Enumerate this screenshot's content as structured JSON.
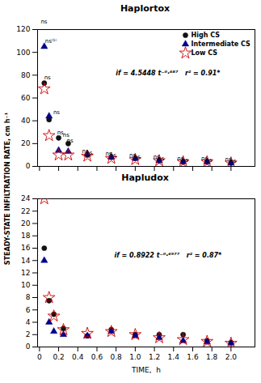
{
  "chart_data": [
    {
      "type": "scatter",
      "title": "Haplortox",
      "ylabel": "STEADY-STATE INFILTRATION RATE, cm h⁻¹",
      "x": [
        0.05,
        0.1,
        0.2,
        0.3,
        0.5,
        0.75,
        1.0,
        1.25,
        1.5,
        1.75,
        2.0
      ],
      "series": [
        {
          "name": "High CS",
          "color": "#111111",
          "marker": "circle",
          "values": [
            73,
            41,
            25,
            20,
            10,
            8,
            7,
            5,
            4,
            4,
            3
          ]
        },
        {
          "name": "Intermediate CS",
          "color": "#00008B",
          "marker": "triangle",
          "values": [
            105,
            44,
            14,
            13,
            11,
            8,
            7,
            5,
            4,
            4,
            3
          ]
        },
        {
          "name": "Low CS",
          "color": "#CC0000",
          "marker": "star",
          "values": [
            68,
            27,
            10,
            10,
            9,
            7,
            6,
            5,
            4,
            4,
            3
          ]
        }
      ],
      "xlim": [
        -0.02,
        2.25
      ],
      "xticks": [
        0,
        0.2,
        0.4,
        0.6,
        0.8,
        1,
        1.2,
        1.4,
        1.6,
        1.8,
        2
      ],
      "ylim": [
        0,
        120
      ],
      "yticks": [
        0,
        20,
        40,
        60,
        80,
        100,
        120
      ],
      "tick_labels": "y",
      "grid": false,
      "legend": "upper right",
      "annotations": [
        {
          "text": "ns",
          "x": 0.047,
          "y": 125
        },
        {
          "text": "ns",
          "x": 0.083,
          "y": 76
        },
        {
          "text": "ns⁽¹⁾",
          "x": 0.118,
          "y": 108
        },
        {
          "text": "ns",
          "x": 0.178,
          "y": 46
        },
        {
          "text": "ns",
          "x": 0.218,
          "y": 28
        },
        {
          "text": "ns",
          "x": 0.278,
          "y": 26
        },
        {
          "text": "ns",
          "x": 0.318,
          "y": 21
        },
        {
          "text": "ns",
          "x": 0.478,
          "y": 12
        },
        {
          "text": "ns",
          "x": 0.518,
          "y": 10
        },
        {
          "text": "ns",
          "x": 0.722,
          "y": 9.5
        },
        {
          "text": "ns",
          "x": 0.768,
          "y": 8.0
        },
        {
          "text": "ns",
          "x": 0.972,
          "y": 8.5
        },
        {
          "text": "ns",
          "x": 1.018,
          "y": 7.0
        },
        {
          "text": "ns",
          "x": 1.222,
          "y": 6.5
        },
        {
          "text": "ns",
          "x": 1.268,
          "y": 5.2
        },
        {
          "text": "ns",
          "x": 1.472,
          "y": 5.2
        },
        {
          "text": "ns",
          "x": 1.518,
          "y": 4.0
        },
        {
          "text": "ns",
          "x": 1.722,
          "y": 5.2
        },
        {
          "text": "ns",
          "x": 1.768,
          "y": 4.0
        },
        {
          "text": "ns",
          "x": 1.972,
          "y": 4.8
        },
        {
          "text": "ns",
          "x": 2.018,
          "y": 3.2
        },
        {
          "text": "if = 4.5448 t⁻⁰·⁶⁸⁷   r² = 0.91*"
        }
      ]
    },
    {
      "type": "scatter",
      "title": "Hapludox",
      "xlabel": "TIME,  h",
      "x": [
        0.05,
        0.1,
        0.15,
        0.25,
        0.5,
        0.75,
        1.0,
        1.25,
        1.5,
        1.75,
        2.0
      ],
      "series": [
        {
          "name": "High CS",
          "color": "#111111",
          "marker": "circle",
          "values": [
            16,
            7.5,
            5.3,
            3.0,
            1.8,
            2.8,
            2.0,
            2.0,
            2.0,
            1.0,
            0.7
          ]
        },
        {
          "name": "Intermediate CS",
          "color": "#00008B",
          "marker": "triangle",
          "values": [
            14,
            4.0,
            2.5,
            2.0,
            1.8,
            2.5,
            1.8,
            1.5,
            1.0,
            0.8,
            0.6
          ]
        },
        {
          "name": "Low CS",
          "color": "#CC0000",
          "marker": "star",
          "values": [
            24,
            8.0,
            5.0,
            2.8,
            2.2,
            2.5,
            2.0,
            1.5,
            1.2,
            0.9,
            0.6
          ]
        }
      ],
      "xlim": [
        -0.02,
        2.25
      ],
      "xticks": [
        0,
        0.2,
        0.4,
        0.6,
        0.8,
        {
          "value": 1,
          "label": "1.0"
        },
        1.2,
        1.4,
        1.6,
        1.8,
        {
          "value": 2,
          "label": "2.0"
        }
      ],
      "ylim": [
        0,
        24
      ],
      "yticks": [
        0,
        2,
        4,
        6,
        8,
        10,
        12,
        14,
        16,
        18,
        20,
        22,
        24
      ],
      "grid": false,
      "annotations": [
        {
          "text": "if = 0.8922 t⁻⁰·⁶⁹⁷⁷   r² = 0.87*"
        }
      ]
    }
  ]
}
